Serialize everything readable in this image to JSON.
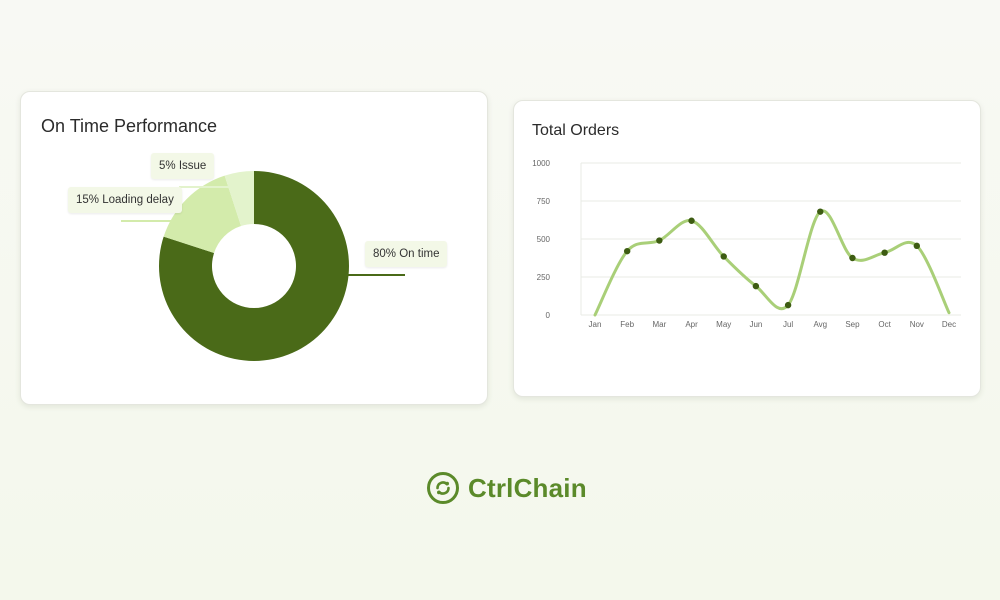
{
  "brand": {
    "name": "CtrlChain",
    "color": "#5b8a2a"
  },
  "colors": {
    "dark_green": "#4a6a18",
    "light_green": "#d3ebab",
    "pale_green": "#e3f3cc",
    "line_green": "#a9cf78",
    "point_green": "#3d5c12"
  },
  "chart_data": [
    {
      "type": "pie",
      "title": "On Time Performance",
      "donut": true,
      "slices": [
        {
          "label": "80% On time",
          "value": 80,
          "color": "#4a6a18"
        },
        {
          "label": "15% Loading delay",
          "value": 15,
          "color": "#d3ebab"
        },
        {
          "label": "5% Issue",
          "value": 5,
          "color": "#e3f3cc"
        }
      ]
    },
    {
      "type": "line",
      "title": "Total Orders",
      "smooth": true,
      "categories": [
        "Jan",
        "Feb",
        "Mar",
        "Apr",
        "May",
        "Jun",
        "Jul",
        "Avg",
        "Sep",
        "Oct",
        "Nov",
        "Dec"
      ],
      "values": [
        0,
        420,
        490,
        620,
        385,
        190,
        65,
        680,
        375,
        410,
        455,
        15
      ],
      "markers_shown": [
        false,
        true,
        true,
        true,
        true,
        true,
        true,
        true,
        true,
        true,
        true,
        false
      ],
      "ylim": [
        0,
        1000
      ],
      "yticks": [
        "0",
        "250",
        "500",
        "750",
        "1000"
      ],
      "grid": true,
      "xlabel": "",
      "ylabel": ""
    }
  ]
}
